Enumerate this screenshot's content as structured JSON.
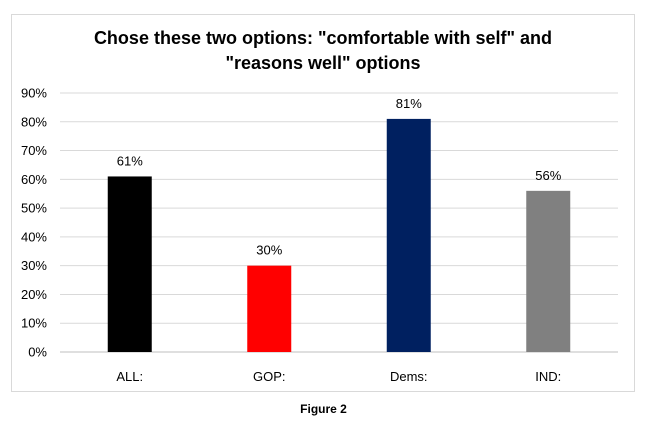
{
  "chart_data": {
    "type": "bar",
    "title_lines": [
      "Chose these two options: \"comfortable with self\" and",
      "\"reasons well\" options"
    ],
    "categories": [
      "ALL:",
      "GOP:",
      "Dems:",
      "IND:"
    ],
    "values": [
      61,
      30,
      81,
      56
    ],
    "data_labels": [
      "61%",
      "30%",
      "81%",
      "56%"
    ],
    "colors": [
      "#000000",
      "#ff0000",
      "#002060",
      "#808080"
    ],
    "ylim": [
      0,
      90
    ],
    "yticks": [
      0,
      10,
      20,
      30,
      40,
      50,
      60,
      70,
      80,
      90
    ],
    "ytick_labels": [
      "0%",
      "10%",
      "20%",
      "30%",
      "40%",
      "50%",
      "60%",
      "70%",
      "80%",
      "90%"
    ],
    "xlabel": "",
    "ylabel": "",
    "grid": true,
    "legend": "none"
  },
  "caption": "Figure 2"
}
